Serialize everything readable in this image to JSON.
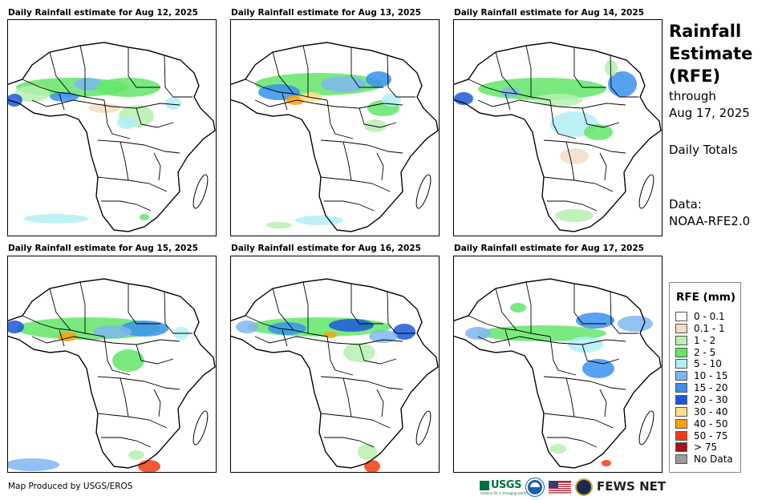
{
  "panels": [
    {
      "title": "Daily Rainfall estimate for Aug 12, 2025"
    },
    {
      "title": "Daily Rainfall estimate for Aug 13, 2025"
    },
    {
      "title": "Daily Rainfall estimate for Aug 14, 2025"
    },
    {
      "title": "Daily Rainfall estimate for Aug 15, 2025"
    },
    {
      "title": "Daily Rainfall estimate for Aug 16, 2025"
    },
    {
      "title": "Daily Rainfall estimate for Aug 17, 2025"
    }
  ],
  "sidebar": {
    "title_line1": "Rainfall",
    "title_line2": "Estimate",
    "title_line3": "(RFE)",
    "through": "through",
    "end_date": "Aug 17, 2025",
    "totals": "Daily Totals",
    "data_label": "Data:",
    "data_source": "NOAA-RFE2.0"
  },
  "legend": {
    "title": "RFE (mm)",
    "items": [
      {
        "label": "0 - 0.1",
        "color": "#ffffff"
      },
      {
        "label": "0.1 - 1",
        "color": "#f2ddc5"
      },
      {
        "label": "1 - 2",
        "color": "#b6f0b0"
      },
      {
        "label": "2 - 5",
        "color": "#63e66a"
      },
      {
        "label": "5 - 10",
        "color": "#b2eef6"
      },
      {
        "label": "10 - 15",
        "color": "#7fb6f1"
      },
      {
        "label": "15 - 20",
        "color": "#3a90ee"
      },
      {
        "label": "20 - 30",
        "color": "#1c58d8"
      },
      {
        "label": "30 - 40",
        "color": "#fbe08a"
      },
      {
        "label": "40 - 50",
        "color": "#f8a20c"
      },
      {
        "label": "50 - 75",
        "color": "#f43b12"
      },
      {
        "label": "> 75",
        "color": "#a31515"
      },
      {
        "label": "No Data",
        "color": "#9a9a9a"
      }
    ]
  },
  "footer": {
    "credit": "Map Produced by USGS/EROS",
    "usgs": "USGS",
    "usgs_tagline": "science for a changing world",
    "fews": "FEWS NET"
  }
}
